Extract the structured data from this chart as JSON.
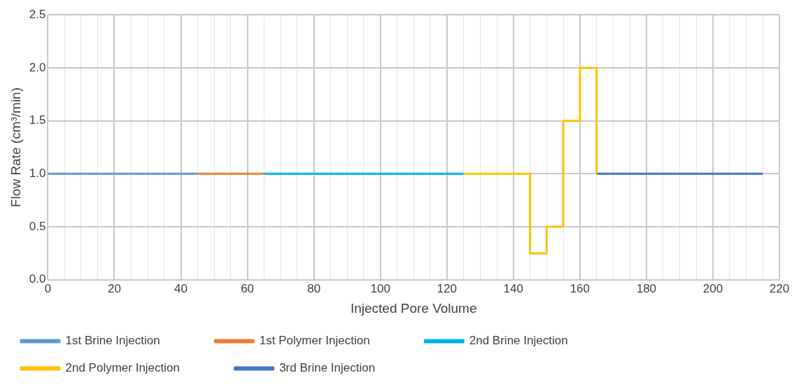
{
  "chart_data": {
    "type": "line",
    "xlabel": "Injected Pore Volume",
    "ylabel": "Flow Rate (cm³/min)",
    "xlim": [
      0,
      220
    ],
    "ylim": [
      0,
      2.5
    ],
    "xticks": [
      0,
      {
        "value": 5,
        "label": null
      },
      {
        "value": 10,
        "label": null
      },
      {
        "value": 15,
        "label": null
      },
      20,
      {
        "value": 25,
        "label": null
      },
      {
        "value": 30,
        "label": null
      },
      {
        "value": 35,
        "label": null
      },
      40,
      {
        "value": 45,
        "label": null
      },
      {
        "value": 50,
        "label": null
      },
      {
        "value": 55,
        "label": null
      },
      60,
      {
        "value": 65,
        "label": null
      },
      {
        "value": 70,
        "label": null
      },
      {
        "value": 75,
        "label": null
      },
      80,
      {
        "value": 85,
        "label": null
      },
      {
        "value": 90,
        "label": null
      },
      {
        "value": 95,
        "label": null
      },
      100,
      {
        "value": 105,
        "label": null
      },
      {
        "value": 110,
        "label": null
      },
      {
        "value": 115,
        "label": null
      },
      120,
      {
        "value": 125,
        "label": null
      },
      {
        "value": 130,
        "label": null
      },
      {
        "value": 135,
        "label": null
      },
      140,
      {
        "value": 145,
        "label": null
      },
      {
        "value": 150,
        "label": null
      },
      {
        "value": 155,
        "label": null
      },
      160,
      {
        "value": 165,
        "label": null
      },
      {
        "value": 170,
        "label": null
      },
      {
        "value": 175,
        "label": null
      },
      180,
      {
        "value": 185,
        "label": null
      },
      {
        "value": 190,
        "label": null
      },
      {
        "value": 195,
        "label": null
      },
      200,
      {
        "value": 205,
        "label": null
      },
      {
        "value": 210,
        "label": null
      },
      {
        "value": 215,
        "label": null
      },
      220
    ],
    "yticks": [
      {
        "value": 0,
        "label": "0.0"
      },
      {
        "value": 0.5,
        "label": "0.5"
      },
      {
        "value": 1,
        "label": "1.0"
      },
      {
        "value": 1.5,
        "label": "1.5"
      },
      {
        "value": 2,
        "label": "2.0"
      },
      {
        "value": 2.5,
        "label": "2.5"
      }
    ],
    "grid": true,
    "legend": "bottom",
    "marker": "none",
    "line_style": "solid",
    "series": [
      {
        "name": "1st Brine Injection",
        "color": "#5b9bd5",
        "x": [
          0,
          45
        ],
        "values": [
          1,
          1
        ]
      },
      {
        "name": "1st Polymer Injection",
        "color": "#ed7d31",
        "x": [
          45,
          65
        ],
        "values": [
          1,
          1
        ]
      },
      {
        "name": "2nd Brine Injection",
        "color": "#00b0f0",
        "x": [
          65,
          125
        ],
        "values": [
          1,
          1
        ]
      },
      {
        "name": "2nd Polymer Injection",
        "type": "step",
        "color": "#ffc000",
        "x": [
          125,
          145,
          150,
          155,
          160,
          165
        ],
        "values": [
          1,
          0.25,
          0.5,
          1.5,
          2,
          1
        ]
      },
      {
        "name": "3rd Brine Injection",
        "color": "#4472c4",
        "x": [
          165,
          215
        ],
        "values": [
          1,
          1
        ]
      }
    ]
  }
}
